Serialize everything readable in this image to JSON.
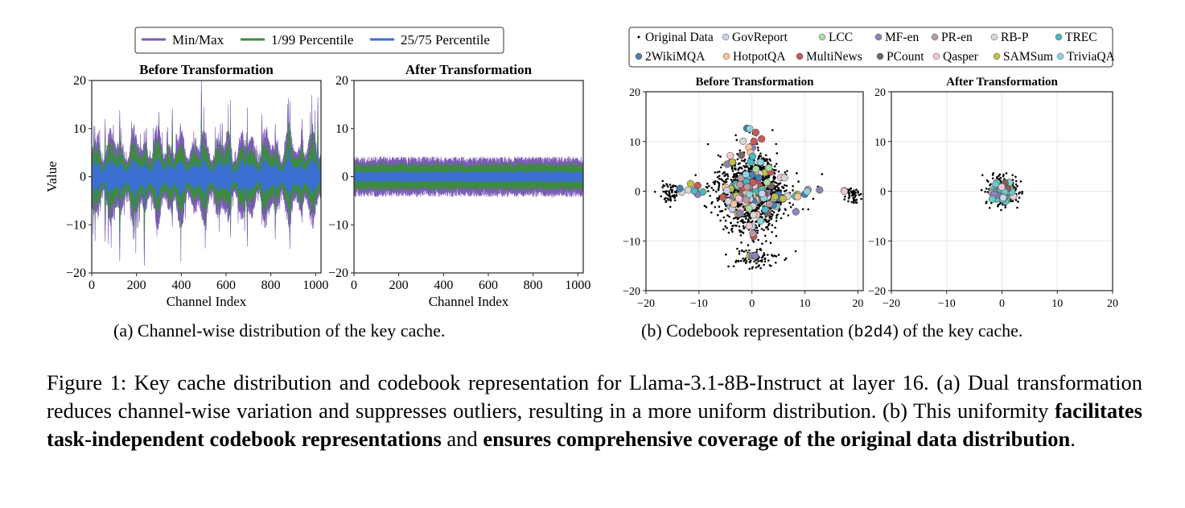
{
  "figure": {
    "subcaption_a": "(a) Channel-wise distribution of the key cache.",
    "subcaption_b_prefix": "(b) Codebook representation (",
    "subcaption_b_code": "b2d4",
    "subcaption_b_suffix": ") of the key cache.",
    "caption": {
      "label": "Figure 1:",
      "text1": " Key cache distribution and codebook representation for Llama-3.1-8B-Instruct at layer 16. (a) Dual transformation reduces channel-wise variation and suppresses outliers, resulting in a more uniform distribution. (b) This uniformity ",
      "bold1": "facilitates task-independent codebook representations",
      "text2": " and ",
      "bold2": "ensures comprehensive coverage of the original data distribution",
      "text3": "."
    }
  },
  "chart_data": [
    {
      "type": "area",
      "panel": "a-left",
      "title": "Before Transformation",
      "xlabel": "Channel Index",
      "ylabel": "Value",
      "xlim": [
        0,
        1024
      ],
      "ylim": [
        -20,
        20
      ],
      "xticks": [
        "0",
        "200",
        "400",
        "600",
        "800",
        "1000"
      ],
      "yticks": [
        "20",
        "10",
        "0",
        "−10",
        "−20"
      ],
      "legend": [
        "Min/Max",
        "1/99 Percentile",
        "25/75 Percentile"
      ],
      "legend_position": "top-center",
      "series_colors": {
        "Min/Max": "#7b5bb5",
        "1/99 Percentile": "#3d8c3d",
        "25/75 Percentile": "#3b6fd1"
      },
      "typical_range": {
        "minmax": 6,
        "p1_99": 4,
        "p25_75": 2
      },
      "spikes": [
        {
          "channel": 30,
          "max": 9.5,
          "min": -8
        },
        {
          "channel": 60,
          "max": 12,
          "min": -13.5
        },
        {
          "channel": 125,
          "max": 13.8,
          "min": -17.5
        },
        {
          "channel": 185,
          "max": 8,
          "min": -10
        },
        {
          "channel": 235,
          "max": 6,
          "min": -18.5
        },
        {
          "channel": 300,
          "max": 13.5,
          "min": -8
        },
        {
          "channel": 360,
          "max": 14.2,
          "min": -10.5
        },
        {
          "channel": 490,
          "max": 20,
          "min": -6
        },
        {
          "channel": 575,
          "max": 11,
          "min": -8
        },
        {
          "channel": 620,
          "max": 10,
          "min": -12.7
        },
        {
          "channel": 695,
          "max": 9,
          "min": -14.5
        },
        {
          "channel": 760,
          "max": 13,
          "min": -8
        },
        {
          "channel": 820,
          "max": 11,
          "min": -13
        },
        {
          "channel": 885,
          "max": 15.8,
          "min": -15
        },
        {
          "channel": 940,
          "max": 12,
          "min": -9.5
        },
        {
          "channel": 1010,
          "max": 16.5,
          "min": -4
        }
      ]
    },
    {
      "type": "area",
      "panel": "a-right",
      "title": "After Transformation",
      "xlabel": "Channel Index",
      "xlim": [
        0,
        1024
      ],
      "ylim": [
        -20,
        20
      ],
      "xticks": [
        "0",
        "200",
        "400",
        "600",
        "800",
        "1000"
      ],
      "yticks": [
        "20",
        "10",
        "0",
        "−10",
        "−20"
      ],
      "typical_range": {
        "minmax": 3.5,
        "p1_99": 2.3,
        "p25_75": 0.9
      }
    },
    {
      "type": "scatter",
      "panel": "b-left",
      "title": "Before Transformation",
      "xlim": [
        -20,
        21
      ],
      "ylim": [
        -20,
        20
      ],
      "xticks": [
        "−20",
        "−10",
        "0",
        "10",
        "20"
      ],
      "yticks": [
        "20",
        "10",
        "0",
        "−10",
        "−20"
      ],
      "grid": true,
      "original_data_clusters": [
        {
          "center": [
            0,
            0
          ],
          "spread": [
            3.5,
            4.5
          ],
          "count": 1400
        },
        {
          "center": [
            -15.5,
            -0.3
          ],
          "spread": [
            1.2,
            1
          ],
          "count": 60
        },
        {
          "center": [
            19,
            -0.5
          ],
          "spread": [
            0.6,
            0.9
          ],
          "count": 50
        },
        {
          "center": [
            0,
            -13.5
          ],
          "spread": [
            2.5,
            1.2
          ],
          "count": 70
        }
      ]
    },
    {
      "type": "scatter",
      "panel": "b-right",
      "title": "After Transformation",
      "xlim": [
        -20,
        20
      ],
      "ylim": [
        -20,
        20
      ],
      "xticks": [
        "−20",
        "−10",
        "0",
        "10",
        "20"
      ],
      "yticks": [
        "20",
        "10",
        "0",
        "−10",
        "−20"
      ],
      "grid": true,
      "original_data_clusters": [
        {
          "center": [
            0,
            0
          ],
          "spread": [
            1.3,
            1.3
          ],
          "count": 300
        }
      ]
    }
  ],
  "scatter_legend": [
    {
      "label": "Original Data",
      "color": "#000000",
      "marker": "dot"
    },
    {
      "label": "GovReport",
      "color": "#c9d3ea"
    },
    {
      "label": "LCC",
      "color": "#a9dba3"
    },
    {
      "label": "MF-en",
      "color": "#8e84b8"
    },
    {
      "label": "PR-en",
      "color": "#b89aa0"
    },
    {
      "label": "RB-P",
      "color": "#d6d6d6"
    },
    {
      "label": "TREC",
      "color": "#4ab8c0"
    },
    {
      "label": "2WikiMQA",
      "color": "#4a7fb0"
    },
    {
      "label": "HotpotQA",
      "color": "#f5c49a"
    },
    {
      "label": "MultiNews",
      "color": "#c65a5a"
    },
    {
      "label": "PCount",
      "color": "#7d6262"
    },
    {
      "label": "Qasper",
      "color": "#f2c6d6"
    },
    {
      "label": "SAMSum",
      "color": "#bfbf4a"
    },
    {
      "label": "TriviaQA",
      "color": "#8fd3da"
    }
  ]
}
